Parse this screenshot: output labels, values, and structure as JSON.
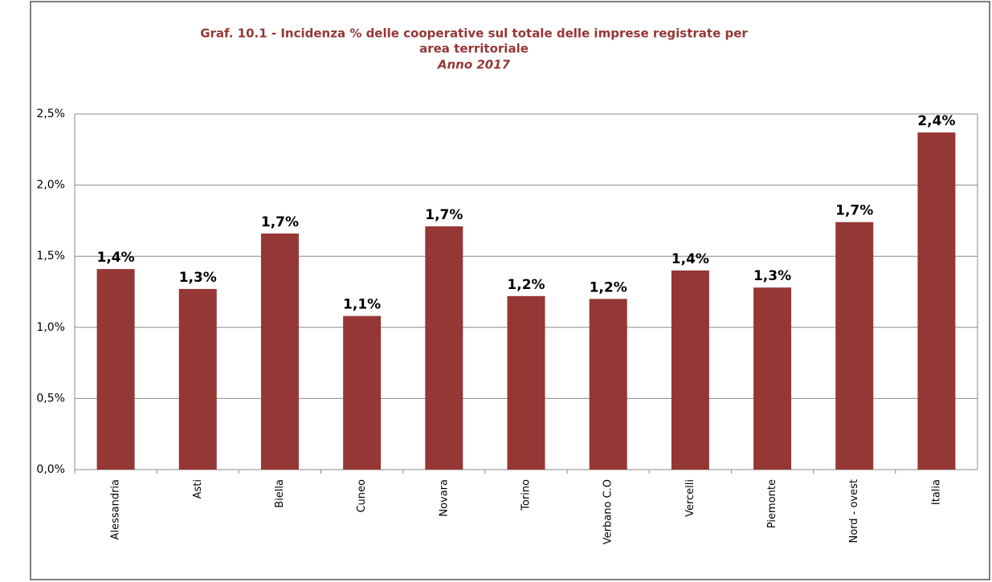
{
  "chart_data": {
    "type": "bar",
    "title": [
      "Graf. 10.1 - Incidenza % delle cooperative sul totale delle imprese registrate per",
      "area territoriale"
    ],
    "subtitle": "Anno 2017",
    "categories": [
      "Alessandria",
      "Asti",
      "Biella",
      "Cuneo",
      "Novara",
      "Torino",
      "Verbano C.O",
      "Vercelli",
      "Piemonte",
      "Nord - ovest",
      "Italia"
    ],
    "values": [
      1.41,
      1.27,
      1.66,
      1.08,
      1.71,
      1.22,
      1.2,
      1.4,
      1.28,
      1.74,
      2.37
    ],
    "value_labels": [
      "1,4%",
      "1,3%",
      "1,7%",
      "1,1%",
      "1,7%",
      "1,2%",
      "1,2%",
      "1,4%",
      "1,3%",
      "1,7%",
      "2,4%"
    ],
    "color": "#953735",
    "ylim": [
      0,
      2.5
    ],
    "yticks": [
      {
        "value": 0,
        "label": "0,0%"
      },
      {
        "value": 0.5,
        "label": "0,5%"
      },
      {
        "value": 1,
        "label": "1,0%"
      },
      {
        "value": 1.5,
        "label": "1,5%"
      },
      {
        "value": 2,
        "label": "2,0%"
      },
      {
        "value": 2.5,
        "label": "2,5%"
      }
    ],
    "grid": true
  }
}
